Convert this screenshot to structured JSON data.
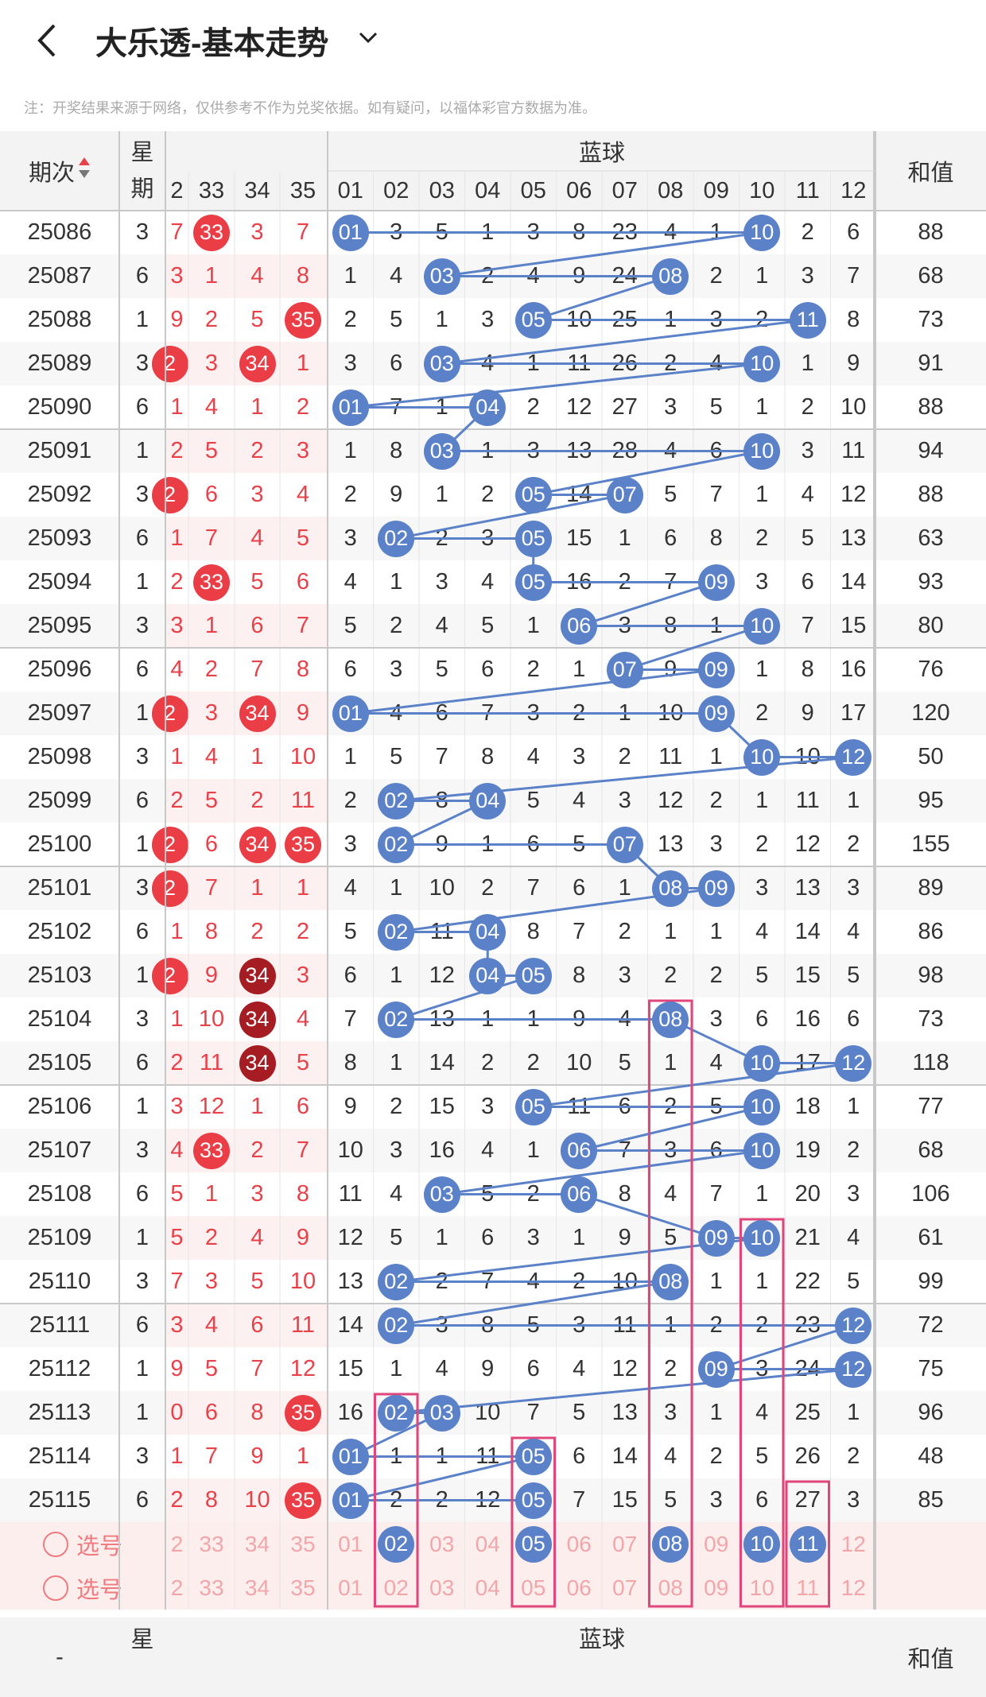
{
  "header": {
    "title": "大乐透-基本走势",
    "back_icon": "chevron-left-icon",
    "dropdown_icon": "chevron-down-icon"
  },
  "note": "注：开奖结果来源于网络，仅供参考不作为兑奖依据。如有疑问，以福体彩官方数据为准。",
  "table": {
    "period_header": "期次",
    "week_header": "星\n期",
    "blue_header": "蓝球",
    "sum_header": "和值",
    "front_cols": [
      "2",
      "33",
      "34",
      "35"
    ],
    "blue_cols": [
      "01",
      "02",
      "03",
      "04",
      "05",
      "06",
      "07",
      "08",
      "09",
      "10",
      "11",
      "12"
    ],
    "rows": [
      {
        "period": "25086",
        "week": "3",
        "front": [
          "7",
          "33",
          "3",
          "7"
        ],
        "front_balls": [
          1
        ],
        "blue": [
          "01",
          "3",
          "5",
          "1",
          "3",
          "8",
          "23",
          "4",
          "1",
          "10",
          "2",
          "6"
        ],
        "blue_balls": [
          0,
          9
        ],
        "sum": "88"
      },
      {
        "period": "25087",
        "week": "6",
        "front": [
          "3",
          "1",
          "4",
          "8"
        ],
        "front_balls": [],
        "blue": [
          "1",
          "4",
          "03",
          "2",
          "4",
          "9",
          "24",
          "08",
          "2",
          "1",
          "3",
          "7"
        ],
        "blue_balls": [
          2,
          7
        ],
        "sum": "68"
      },
      {
        "period": "25088",
        "week": "1",
        "front": [
          "9",
          "2",
          "5",
          "35"
        ],
        "front_balls": [
          3
        ],
        "blue": [
          "2",
          "5",
          "1",
          "3",
          "05",
          "10",
          "25",
          "1",
          "3",
          "2",
          "11",
          "8"
        ],
        "blue_balls": [
          4,
          10
        ],
        "sum": "73"
      },
      {
        "period": "25089",
        "week": "3",
        "front": [
          "2",
          "3",
          "34",
          "1"
        ],
        "front_balls": [
          0,
          2
        ],
        "blue": [
          "3",
          "6",
          "03",
          "4",
          "1",
          "11",
          "26",
          "2",
          "4",
          "10",
          "1",
          "9"
        ],
        "blue_balls": [
          2,
          9
        ],
        "sum": "91"
      },
      {
        "period": "25090",
        "week": "6",
        "front": [
          "1",
          "4",
          "1",
          "2"
        ],
        "front_balls": [],
        "blue": [
          "01",
          "7",
          "1",
          "04",
          "2",
          "12",
          "27",
          "3",
          "5",
          "1",
          "2",
          "10"
        ],
        "blue_balls": [
          0,
          3
        ],
        "sum": "88"
      },
      {
        "period": "25091",
        "week": "1",
        "front": [
          "2",
          "5",
          "2",
          "3"
        ],
        "front_balls": [],
        "blue": [
          "1",
          "8",
          "03",
          "1",
          "3",
          "13",
          "28",
          "4",
          "6",
          "10",
          "3",
          "11"
        ],
        "blue_balls": [
          2,
          9
        ],
        "sum": "94"
      },
      {
        "period": "25092",
        "week": "3",
        "front": [
          "2",
          "6",
          "3",
          "4"
        ],
        "front_balls": [
          0
        ],
        "blue": [
          "2",
          "9",
          "1",
          "2",
          "05",
          "14",
          "07",
          "5",
          "7",
          "1",
          "4",
          "12"
        ],
        "blue_balls": [
          4,
          6
        ],
        "sum": "88"
      },
      {
        "period": "25093",
        "week": "6",
        "front": [
          "1",
          "7",
          "4",
          "5"
        ],
        "front_balls": [],
        "blue": [
          "3",
          "02",
          "2",
          "3",
          "05",
          "15",
          "1",
          "6",
          "8",
          "2",
          "5",
          "13"
        ],
        "blue_balls": [
          1,
          4
        ],
        "sum": "63"
      },
      {
        "period": "25094",
        "week": "1",
        "front": [
          "2",
          "33",
          "5",
          "6"
        ],
        "front_balls": [
          1
        ],
        "blue": [
          "4",
          "1",
          "3",
          "4",
          "05",
          "16",
          "2",
          "7",
          "09",
          "3",
          "6",
          "14"
        ],
        "blue_balls": [
          4,
          8
        ],
        "sum": "93"
      },
      {
        "period": "25095",
        "week": "3",
        "front": [
          "3",
          "1",
          "6",
          "7"
        ],
        "front_balls": [],
        "blue": [
          "5",
          "2",
          "4",
          "5",
          "1",
          "06",
          "3",
          "8",
          "1",
          "10",
          "7",
          "15"
        ],
        "blue_balls": [
          5,
          9
        ],
        "sum": "80"
      },
      {
        "period": "25096",
        "week": "6",
        "front": [
          "4",
          "2",
          "7",
          "8"
        ],
        "front_balls": [],
        "blue": [
          "6",
          "3",
          "5",
          "6",
          "2",
          "1",
          "07",
          "9",
          "09",
          "1",
          "8",
          "16"
        ],
        "blue_balls": [
          6,
          8
        ],
        "sum": "76"
      },
      {
        "period": "25097",
        "week": "1",
        "front": [
          "2",
          "3",
          "34",
          "9"
        ],
        "front_balls": [
          0,
          2
        ],
        "blue": [
          "01",
          "4",
          "6",
          "7",
          "3",
          "2",
          "1",
          "10",
          "09",
          "2",
          "9",
          "17"
        ],
        "blue_balls": [
          0,
          8
        ],
        "sum": "120"
      },
      {
        "period": "25098",
        "week": "3",
        "front": [
          "1",
          "4",
          "1",
          "10"
        ],
        "front_balls": [],
        "blue": [
          "1",
          "5",
          "7",
          "8",
          "4",
          "3",
          "2",
          "11",
          "1",
          "10",
          "10",
          "12"
        ],
        "blue_balls": [
          9,
          11
        ],
        "sum": "50"
      },
      {
        "period": "25099",
        "week": "6",
        "front": [
          "2",
          "5",
          "2",
          "11"
        ],
        "front_balls": [],
        "blue": [
          "2",
          "02",
          "8",
          "04",
          "5",
          "4",
          "3",
          "12",
          "2",
          "1",
          "11",
          "1"
        ],
        "blue_balls": [
          1,
          3
        ],
        "sum": "95"
      },
      {
        "period": "25100",
        "week": "1",
        "front": [
          "2",
          "6",
          "34",
          "35"
        ],
        "front_balls": [
          0,
          2,
          3
        ],
        "blue": [
          "3",
          "02",
          "9",
          "1",
          "6",
          "5",
          "07",
          "13",
          "3",
          "2",
          "12",
          "2"
        ],
        "blue_balls": [
          1,
          6
        ],
        "sum": "155"
      },
      {
        "period": "25101",
        "week": "3",
        "front": [
          "2",
          "7",
          "1",
          "1"
        ],
        "front_balls": [
          0
        ],
        "blue": [
          "4",
          "1",
          "10",
          "2",
          "7",
          "6",
          "1",
          "08",
          "09",
          "3",
          "13",
          "3"
        ],
        "blue_balls": [
          7,
          8
        ],
        "sum": "89"
      },
      {
        "period": "25102",
        "week": "6",
        "front": [
          "1",
          "8",
          "2",
          "2"
        ],
        "front_balls": [],
        "blue": [
          "5",
          "02",
          "11",
          "04",
          "8",
          "7",
          "2",
          "1",
          "1",
          "4",
          "14",
          "4"
        ],
        "blue_balls": [
          1,
          3
        ],
        "sum": "86"
      },
      {
        "period": "25103",
        "week": "1",
        "front": [
          "2",
          "9",
          "34",
          "3"
        ],
        "front_balls": [
          0,
          2
        ],
        "front_dark": [
          2
        ],
        "blue": [
          "6",
          "1",
          "12",
          "04",
          "05",
          "8",
          "3",
          "2",
          "2",
          "5",
          "15",
          "5"
        ],
        "blue_balls": [
          3,
          4
        ],
        "sum": "98"
      },
      {
        "period": "25104",
        "week": "3",
        "front": [
          "1",
          "10",
          "34",
          "4"
        ],
        "front_balls": [
          2
        ],
        "front_dark": [
          2
        ],
        "blue": [
          "7",
          "02",
          "13",
          "1",
          "1",
          "9",
          "4",
          "08",
          "3",
          "6",
          "16",
          "6"
        ],
        "blue_balls": [
          1,
          7
        ],
        "sum": "73"
      },
      {
        "period": "25105",
        "week": "6",
        "front": [
          "2",
          "11",
          "34",
          "5"
        ],
        "front_balls": [
          2
        ],
        "front_dark": [
          2
        ],
        "blue": [
          "8",
          "1",
          "14",
          "2",
          "2",
          "10",
          "5",
          "1",
          "4",
          "10",
          "17",
          "12"
        ],
        "blue_balls": [
          9,
          11
        ],
        "sum": "118"
      },
      {
        "period": "25106",
        "week": "1",
        "front": [
          "3",
          "12",
          "1",
          "6"
        ],
        "front_balls": [],
        "blue": [
          "9",
          "2",
          "15",
          "3",
          "05",
          "11",
          "6",
          "2",
          "5",
          "10",
          "18",
          "1"
        ],
        "blue_balls": [
          4,
          9
        ],
        "sum": "77"
      },
      {
        "period": "25107",
        "week": "3",
        "front": [
          "4",
          "33",
          "2",
          "7"
        ],
        "front_balls": [
          1
        ],
        "blue": [
          "10",
          "3",
          "16",
          "4",
          "1",
          "06",
          "7",
          "3",
          "6",
          "10",
          "19",
          "2"
        ],
        "blue_balls": [
          5,
          9
        ],
        "sum": "68"
      },
      {
        "period": "25108",
        "week": "6",
        "front": [
          "5",
          "1",
          "3",
          "8"
        ],
        "front_balls": [],
        "blue": [
          "11",
          "4",
          "03",
          "5",
          "2",
          "06",
          "8",
          "4",
          "7",
          "1",
          "20",
          "3"
        ],
        "blue_balls": [
          2,
          5
        ],
        "sum": "106"
      },
      {
        "period": "25109",
        "week": "1",
        "front": [
          "5",
          "2",
          "4",
          "9"
        ],
        "front_balls": [],
        "blue": [
          "12",
          "5",
          "1",
          "6",
          "3",
          "1",
          "9",
          "5",
          "09",
          "10",
          "21",
          "4"
        ],
        "blue_balls": [
          8,
          9
        ],
        "sum": "61"
      },
      {
        "period": "25110",
        "week": "3",
        "front": [
          "7",
          "3",
          "5",
          "10"
        ],
        "front_balls": [],
        "blue": [
          "13",
          "02",
          "2",
          "7",
          "4",
          "2",
          "10",
          "08",
          "1",
          "1",
          "22",
          "5"
        ],
        "blue_balls": [
          1,
          7
        ],
        "sum": "99"
      },
      {
        "period": "25111",
        "week": "6",
        "front": [
          "3",
          "4",
          "6",
          "11"
        ],
        "front_balls": [],
        "blue": [
          "14",
          "02",
          "3",
          "8",
          "5",
          "3",
          "11",
          "1",
          "2",
          "2",
          "23",
          "12"
        ],
        "blue_balls": [
          1,
          11
        ],
        "sum": "72"
      },
      {
        "period": "25112",
        "week": "1",
        "front": [
          "9",
          "5",
          "7",
          "12"
        ],
        "front_balls": [],
        "blue": [
          "15",
          "1",
          "4",
          "9",
          "6",
          "4",
          "12",
          "2",
          "09",
          "3",
          "24",
          "12"
        ],
        "blue_balls": [
          8,
          11
        ],
        "sum": "75"
      },
      {
        "period": "25113",
        "week": "1",
        "front": [
          "0",
          "6",
          "8",
          "35"
        ],
        "front_balls": [
          3
        ],
        "blue": [
          "16",
          "02",
          "03",
          "10",
          "7",
          "5",
          "13",
          "3",
          "1",
          "4",
          "25",
          "1"
        ],
        "blue_balls": [
          1,
          2
        ],
        "sum": "96"
      },
      {
        "period": "25114",
        "week": "3",
        "front": [
          "1",
          "7",
          "9",
          "1"
        ],
        "front_balls": [],
        "blue": [
          "01",
          "1",
          "1",
          "11",
          "05",
          "6",
          "14",
          "4",
          "2",
          "5",
          "26",
          "2"
        ],
        "blue_balls": [
          0,
          4
        ],
        "sum": "48"
      },
      {
        "period": "25115",
        "week": "6",
        "front": [
          "2",
          "8",
          "10",
          "35"
        ],
        "front_balls": [
          3
        ],
        "blue": [
          "01",
          "2",
          "2",
          "12",
          "05",
          "7",
          "15",
          "5",
          "3",
          "6",
          "27",
          "3"
        ],
        "blue_balls": [
          0,
          4
        ],
        "sum": "85"
      }
    ],
    "pick_label": "选号",
    "pick_rows": [
      {
        "front": [
          "2",
          "33",
          "34",
          "35"
        ],
        "blue": [
          "01",
          "02",
          "03",
          "04",
          "05",
          "06",
          "07",
          "08",
          "09",
          "10",
          "11",
          "12"
        ],
        "blue_selected": [
          1,
          4,
          7,
          9,
          10
        ]
      },
      {
        "front": [
          "2",
          "33",
          "34",
          "35"
        ],
        "blue": [
          "01",
          "02",
          "03",
          "04",
          "05",
          "06",
          "07",
          "08",
          "09",
          "10",
          "11",
          "12"
        ],
        "blue_selected": []
      }
    ],
    "footer": {
      "period": "-",
      "week": "星",
      "blue_header": "蓝球",
      "sum_header": "和值"
    }
  },
  "colors": {
    "red": "#ea3d45",
    "blue": "#5b82c9",
    "highlight": "#e0457b"
  }
}
